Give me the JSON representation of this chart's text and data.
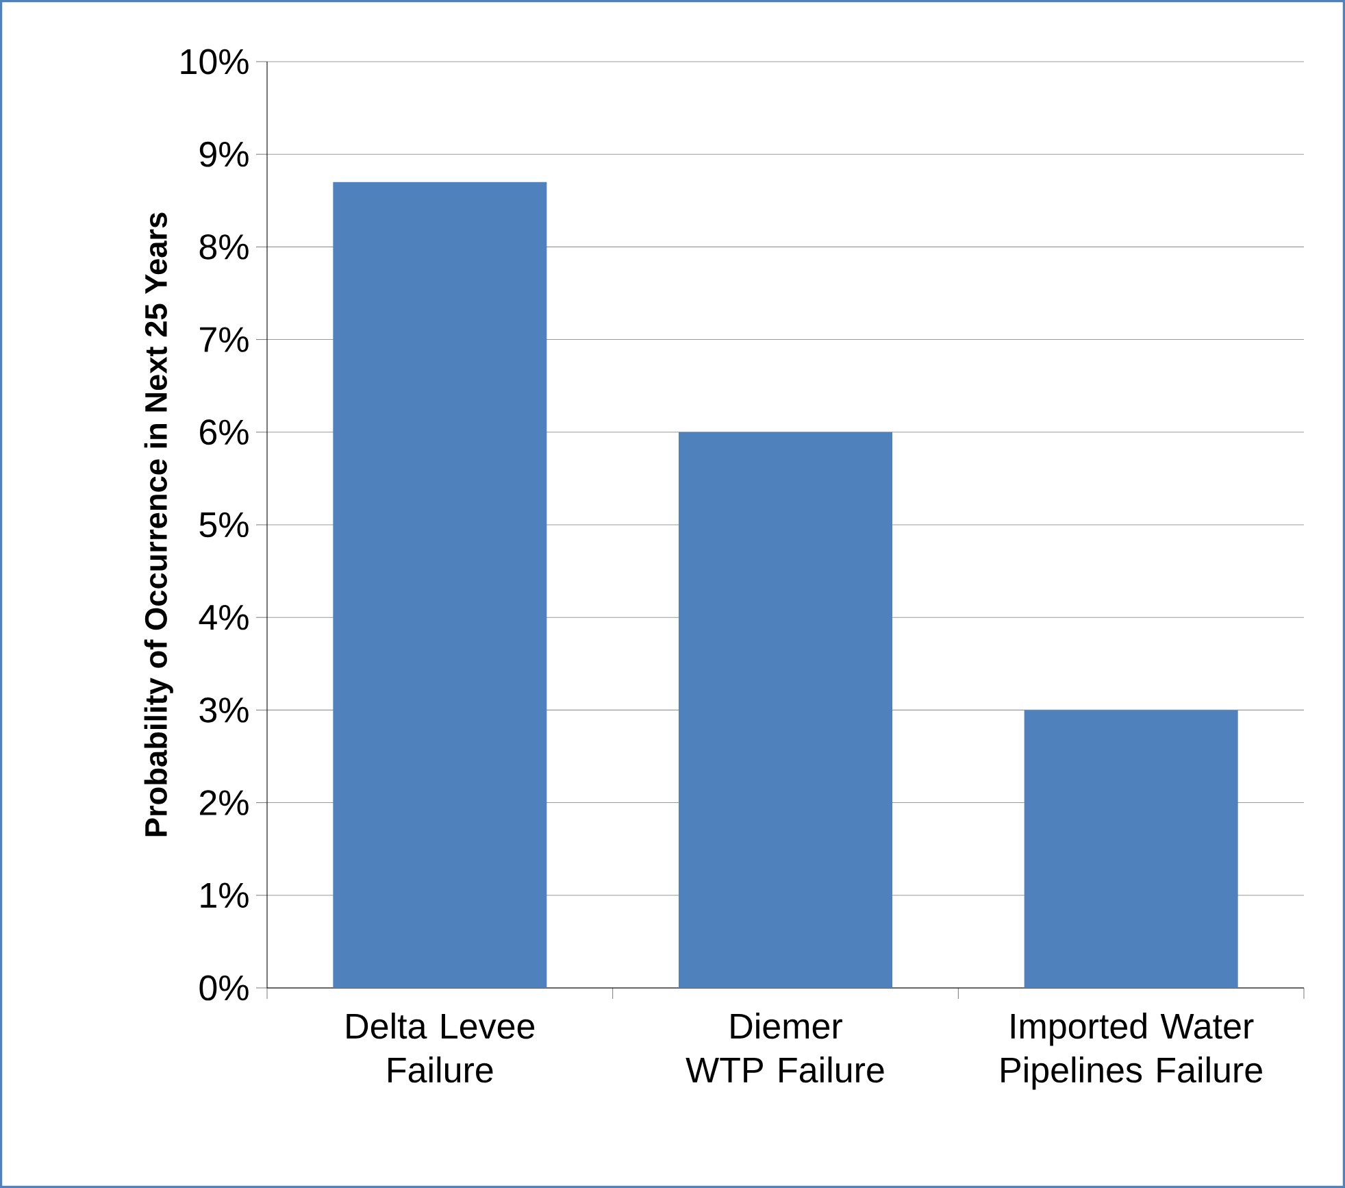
{
  "chart_data": {
    "type": "bar",
    "ylabel": "Probability of Occurrence in Next 25 Years",
    "categories": [
      "Delta Levee Failure",
      "Diemer WTP Failure",
      "Imported Water Pipelines Failure"
    ],
    "values": [
      8.7,
      6,
      3
    ],
    "color": "#4f81bd",
    "ylim": [
      0,
      10
    ],
    "yticks": [
      {
        "value": 0,
        "label": "0%"
      },
      {
        "value": 1,
        "label": "1%"
      },
      {
        "value": 2,
        "label": "2%"
      },
      {
        "value": 3,
        "label": "3%"
      },
      {
        "value": 4,
        "label": "4%"
      },
      {
        "value": 5,
        "label": "5%"
      },
      {
        "value": 6,
        "label": "6%"
      },
      {
        "value": 7,
        "label": "7%"
      },
      {
        "value": 8,
        "label": "8%"
      },
      {
        "value": 9,
        "label": "9%"
      },
      {
        "value": 10,
        "label": "10%"
      }
    ],
    "grid": "y"
  }
}
